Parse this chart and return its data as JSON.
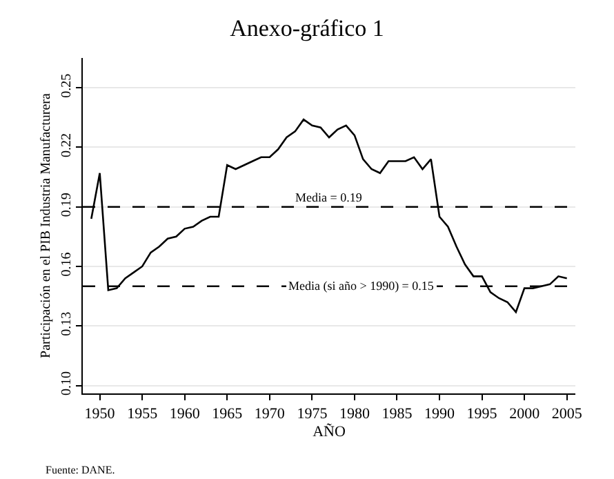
{
  "chart_data": {
    "type": "line",
    "title": "Anexo-gráfico 1",
    "xlabel": "AÑO",
    "ylabel": "Participación en el PIB Industria Manufacturera",
    "x": [
      1949,
      1950,
      1951,
      1952,
      1953,
      1954,
      1955,
      1956,
      1957,
      1958,
      1959,
      1960,
      1961,
      1962,
      1963,
      1964,
      1965,
      1966,
      1967,
      1968,
      1969,
      1970,
      1971,
      1972,
      1973,
      1974,
      1975,
      1976,
      1977,
      1978,
      1979,
      1980,
      1981,
      1982,
      1983,
      1984,
      1985,
      1986,
      1987,
      1988,
      1989,
      1990,
      1991,
      1992,
      1993,
      1994,
      1995,
      1996,
      1997,
      1998,
      1999,
      2000,
      2001,
      2002,
      2003,
      2004,
      2005
    ],
    "series": [
      {
        "color": "#000000",
        "values": [
          0.184,
          0.207,
          0.148,
          0.149,
          0.154,
          0.157,
          0.16,
          0.167,
          0.17,
          0.174,
          0.175,
          0.179,
          0.18,
          0.183,
          0.185,
          0.185,
          0.211,
          0.209,
          0.211,
          0.213,
          0.215,
          0.215,
          0.219,
          0.225,
          0.228,
          0.234,
          0.231,
          0.23,
          0.225,
          0.229,
          0.231,
          0.226,
          0.214,
          0.209,
          0.207,
          0.213,
          0.213,
          0.213,
          0.215,
          0.209,
          0.214,
          0.185,
          0.18,
          0.17,
          0.161,
          0.155,
          0.155,
          0.147,
          0.144,
          0.142,
          0.137,
          0.149,
          0.149,
          0.15,
          0.151,
          0.155,
          0.154
        ]
      }
    ],
    "xlim": [
      1948,
      2006
    ],
    "xticks": [
      1950,
      1955,
      1960,
      1965,
      1970,
      1975,
      1980,
      1985,
      1990,
      1995,
      2000,
      2005
    ],
    "ylim": [
      0.096,
      0.265
    ],
    "yticks": [
      {
        "value": 0.1,
        "label": "0.10"
      },
      {
        "value": 0.13,
        "label": "0.13"
      },
      {
        "value": 0.16,
        "label": "0.16"
      },
      {
        "value": 0.19,
        "label": "0.19"
      },
      {
        "value": 0.22,
        "label": "0.22"
      },
      {
        "value": 0.25,
        "label": "0.25"
      }
    ],
    "grid": "y",
    "marker": "none",
    "line_style": "solid",
    "ref_lines": [
      {
        "axis": "y",
        "value": 0.19,
        "label": "Media = 0.19",
        "line_style": "dashed",
        "color": "#000000"
      },
      {
        "axis": "y",
        "value": 0.15,
        "label": "Media (si año > 1990) = 0.15",
        "line_style": "dashed",
        "color": "#000000"
      }
    ],
    "annotations": [
      "Fuente: DANE."
    ]
  }
}
